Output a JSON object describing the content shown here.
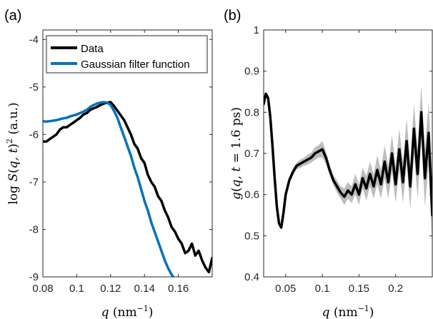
{
  "chart_data": [
    {
      "panel": "(a)",
      "type": "line",
      "xlabel": "q (nm⁻¹)",
      "ylabel": "log S(q,t)² (a.u.)",
      "xlim": [
        0.08,
        0.18
      ],
      "ylim": [
        -9,
        -3.8
      ],
      "xticks": [
        0.08,
        0.1,
        0.12,
        0.14,
        0.16
      ],
      "xtick_labels": [
        "0.08",
        "0.1",
        "0.12",
        "0.14",
        "0.16"
      ],
      "yticks": [
        -9,
        -8,
        -7,
        -6,
        -5,
        -4
      ],
      "ytick_labels": [
        "-9",
        "-8",
        "-7",
        "-6",
        "-5",
        "-4"
      ],
      "grid": false,
      "legend_position": "top-right",
      "series": [
        {
          "name": "Data",
          "color": "#000000",
          "x": [
            0.08,
            0.082,
            0.084,
            0.086,
            0.088,
            0.09,
            0.092,
            0.094,
            0.096,
            0.098,
            0.1,
            0.102,
            0.104,
            0.106,
            0.108,
            0.11,
            0.112,
            0.114,
            0.116,
            0.118,
            0.12,
            0.122,
            0.124,
            0.126,
            0.128,
            0.13,
            0.132,
            0.134,
            0.136,
            0.138,
            0.14,
            0.142,
            0.144,
            0.146,
            0.148,
            0.15,
            0.152,
            0.154,
            0.156,
            0.158,
            0.16,
            0.162,
            0.164,
            0.166,
            0.168,
            0.17,
            0.172,
            0.174,
            0.176,
            0.178,
            0.18
          ],
          "y": [
            -6.15,
            -6.15,
            -6.1,
            -6.05,
            -6.0,
            -5.9,
            -5.85,
            -5.85,
            -5.8,
            -5.75,
            -5.7,
            -5.65,
            -5.58,
            -5.55,
            -5.48,
            -5.45,
            -5.42,
            -5.38,
            -5.35,
            -5.33,
            -5.32,
            -5.4,
            -5.5,
            -5.6,
            -5.7,
            -5.85,
            -6.0,
            -6.2,
            -6.3,
            -6.5,
            -6.6,
            -6.85,
            -7.0,
            -7.1,
            -7.3,
            -7.4,
            -7.6,
            -7.75,
            -7.95,
            -8.05,
            -8.2,
            -8.3,
            -8.5,
            -8.45,
            -8.3,
            -8.55,
            -8.45,
            -8.65,
            -8.8,
            -8.9,
            -8.6
          ]
        },
        {
          "name": "Gaussian filter function",
          "color": "#0072bd",
          "x": [
            0.08,
            0.082,
            0.084,
            0.086,
            0.088,
            0.09,
            0.092,
            0.094,
            0.096,
            0.098,
            0.1,
            0.102,
            0.104,
            0.106,
            0.108,
            0.11,
            0.112,
            0.114,
            0.116,
            0.118,
            0.12,
            0.122,
            0.124,
            0.126,
            0.128,
            0.13,
            0.132,
            0.134,
            0.136,
            0.138,
            0.14,
            0.142,
            0.144,
            0.146,
            0.148,
            0.15,
            0.152,
            0.154,
            0.156,
            0.157
          ],
          "y": [
            -5.72,
            -5.73,
            -5.72,
            -5.71,
            -5.7,
            -5.68,
            -5.66,
            -5.65,
            -5.62,
            -5.6,
            -5.58,
            -5.55,
            -5.52,
            -5.48,
            -5.42,
            -5.38,
            -5.35,
            -5.33,
            -5.32,
            -5.33,
            -5.38,
            -5.5,
            -5.65,
            -5.85,
            -6.05,
            -6.25,
            -6.45,
            -6.7,
            -6.9,
            -7.15,
            -7.4,
            -7.6,
            -7.85,
            -8.05,
            -8.25,
            -8.45,
            -8.65,
            -8.82,
            -8.95,
            -9.0
          ]
        }
      ]
    },
    {
      "panel": "(b)",
      "type": "line",
      "xlabel": "q (nm⁻¹)",
      "ylabel": "g(q, t = 1.6 ps)",
      "xlim": [
        0.02,
        0.25
      ],
      "ylim": [
        0.4,
        1.0
      ],
      "xticks": [
        0.05,
        0.1,
        0.15,
        0.2
      ],
      "xtick_labels": [
        "0.05",
        "0.1",
        "0.15",
        "0.2"
      ],
      "yticks": [
        0.4,
        0.5,
        0.6,
        0.7,
        0.8,
        0.9,
        1.0
      ],
      "ytick_labels": [
        "0.4",
        "0.5",
        "0.6",
        "0.7",
        "0.8",
        "0.9",
        "1"
      ],
      "grid": false,
      "band_color": "#bdbdbd",
      "series": [
        {
          "color": "#000000",
          "x": [
            0.02,
            0.023,
            0.026,
            0.029,
            0.032,
            0.035,
            0.038,
            0.041,
            0.044,
            0.047,
            0.05,
            0.055,
            0.06,
            0.065,
            0.07,
            0.075,
            0.08,
            0.085,
            0.09,
            0.095,
            0.1,
            0.105,
            0.11,
            0.115,
            0.12,
            0.125,
            0.13,
            0.135,
            0.14,
            0.145,
            0.15,
            0.155,
            0.16,
            0.165,
            0.17,
            0.175,
            0.18,
            0.185,
            0.19,
            0.195,
            0.2,
            0.205,
            0.21,
            0.215,
            0.22,
            0.225,
            0.23,
            0.235,
            0.24,
            0.245,
            0.25
          ],
          "y": [
            0.82,
            0.845,
            0.835,
            0.79,
            0.72,
            0.64,
            0.57,
            0.53,
            0.52,
            0.555,
            0.6,
            0.635,
            0.655,
            0.67,
            0.675,
            0.68,
            0.685,
            0.69,
            0.7,
            0.705,
            0.71,
            0.69,
            0.66,
            0.635,
            0.62,
            0.605,
            0.595,
            0.61,
            0.6,
            0.625,
            0.6,
            0.64,
            0.615,
            0.65,
            0.62,
            0.66,
            0.625,
            0.68,
            0.63,
            0.7,
            0.625,
            0.71,
            0.63,
            0.73,
            0.62,
            0.76,
            0.65,
            0.8,
            0.64,
            0.75,
            0.55
          ],
          "err": [
            0.005,
            0.005,
            0.005,
            0.005,
            0.005,
            0.005,
            0.005,
            0.005,
            0.005,
            0.005,
            0.006,
            0.008,
            0.008,
            0.008,
            0.01,
            0.01,
            0.012,
            0.012,
            0.015,
            0.015,
            0.02,
            0.015,
            0.012,
            0.012,
            0.015,
            0.015,
            0.02,
            0.02,
            0.02,
            0.025,
            0.025,
            0.025,
            0.03,
            0.03,
            0.03,
            0.035,
            0.035,
            0.04,
            0.04,
            0.045,
            0.045,
            0.05,
            0.05,
            0.055,
            0.055,
            0.06,
            0.06,
            0.065,
            0.07,
            0.075,
            0.08
          ]
        }
      ]
    }
  ]
}
